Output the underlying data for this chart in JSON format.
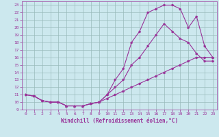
{
  "xlabel": "Windchill (Refroidissement éolien,°C)",
  "bg_color": "#cce8ee",
  "line_color": "#993399",
  "grid_color": "#99bbbb",
  "xlim": [
    -0.5,
    23.5
  ],
  "ylim": [
    9,
    23.5
  ],
  "xticks": [
    0,
    1,
    2,
    3,
    4,
    5,
    6,
    7,
    8,
    9,
    10,
    11,
    12,
    13,
    14,
    15,
    16,
    17,
    18,
    19,
    20,
    21,
    22,
    23
  ],
  "yticks": [
    9,
    10,
    11,
    12,
    13,
    14,
    15,
    16,
    17,
    18,
    19,
    20,
    21,
    22,
    23
  ],
  "line1_x": [
    0,
    1,
    2,
    3,
    4,
    5,
    6,
    7,
    8,
    9,
    10,
    11,
    12,
    13,
    14,
    15,
    16,
    17,
    18,
    19,
    20,
    21,
    22,
    23
  ],
  "line1_y": [
    11,
    10.8,
    10.2,
    10,
    10,
    9.5,
    9.5,
    9.5,
    9.8,
    10,
    10.5,
    11,
    11.5,
    12,
    12.5,
    13,
    13.5,
    14,
    14.5,
    15,
    15.5,
    16,
    16,
    16
  ],
  "line2_x": [
    0,
    1,
    2,
    3,
    4,
    5,
    6,
    7,
    8,
    9,
    10,
    11,
    12,
    13,
    14,
    15,
    16,
    17,
    18,
    19,
    20,
    21,
    22,
    23
  ],
  "line2_y": [
    11,
    10.8,
    10.2,
    10,
    10,
    9.5,
    9.5,
    9.5,
    9.8,
    10,
    11,
    13,
    14.5,
    18,
    19.5,
    22,
    22.5,
    23,
    23,
    22.5,
    20,
    21.5,
    17.5,
    16
  ],
  "line3_x": [
    0,
    1,
    2,
    3,
    4,
    5,
    6,
    7,
    8,
    9,
    10,
    11,
    12,
    13,
    14,
    15,
    16,
    17,
    18,
    19,
    20,
    21,
    22,
    23
  ],
  "line3_y": [
    11,
    10.8,
    10.2,
    10,
    10,
    9.5,
    9.5,
    9.5,
    9.8,
    10,
    11,
    12,
    13,
    15,
    16,
    17.5,
    19,
    20.5,
    19.5,
    18.5,
    18,
    16.5,
    15.5,
    15.5
  ]
}
